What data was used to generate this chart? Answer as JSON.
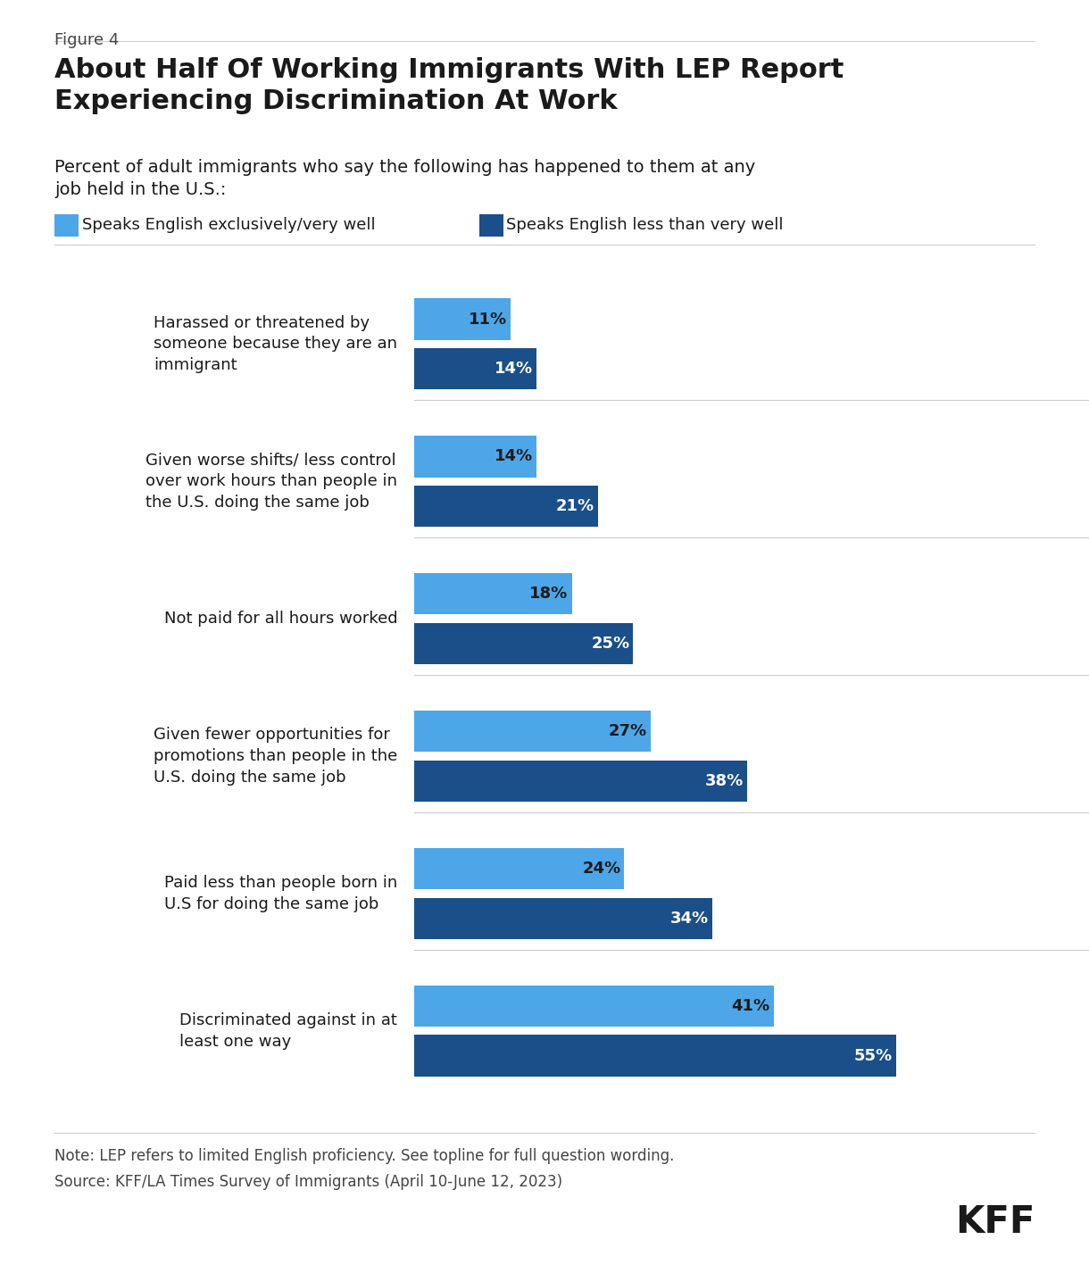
{
  "figure_label": "Figure 4",
  "title": "About Half Of Working Immigrants With LEP Report\nExperiencing Discrimination At Work",
  "subtitle": "Percent of adult immigrants who say the following has happened to them at any\njob held in the U.S.:",
  "legend_labels": [
    "Speaks English exclusively/very well",
    "Speaks English less than very well"
  ],
  "legend_colors": [
    "#4da6e8",
    "#1a4f8a"
  ],
  "categories": [
    "Harassed or threatened by\nsomeone because they are an\nimmigrant",
    "Given worse shifts/ less control\nover work hours than people in\nthe U.S. doing the same job",
    "Not paid for all hours worked",
    "Given fewer opportunities for\npromotions than people in the\nU.S. doing the same job",
    "Paid less than people born in\nU.S for doing the same job",
    "Discriminated against in at\nleast one way"
  ],
  "values_light": [
    11,
    14,
    18,
    27,
    24,
    41
  ],
  "values_dark": [
    14,
    21,
    25,
    38,
    34,
    55
  ],
  "color_light": "#4da6e8",
  "color_dark": "#1a4f8a",
  "note": "Note: LEP refers to limited English proficiency. See topline for full question wording.",
  "source": "Source: KFF/LA Times Survey of Immigrants (April 10-June 12, 2023)",
  "kff_label": "KFF",
  "background_color": "#ffffff"
}
